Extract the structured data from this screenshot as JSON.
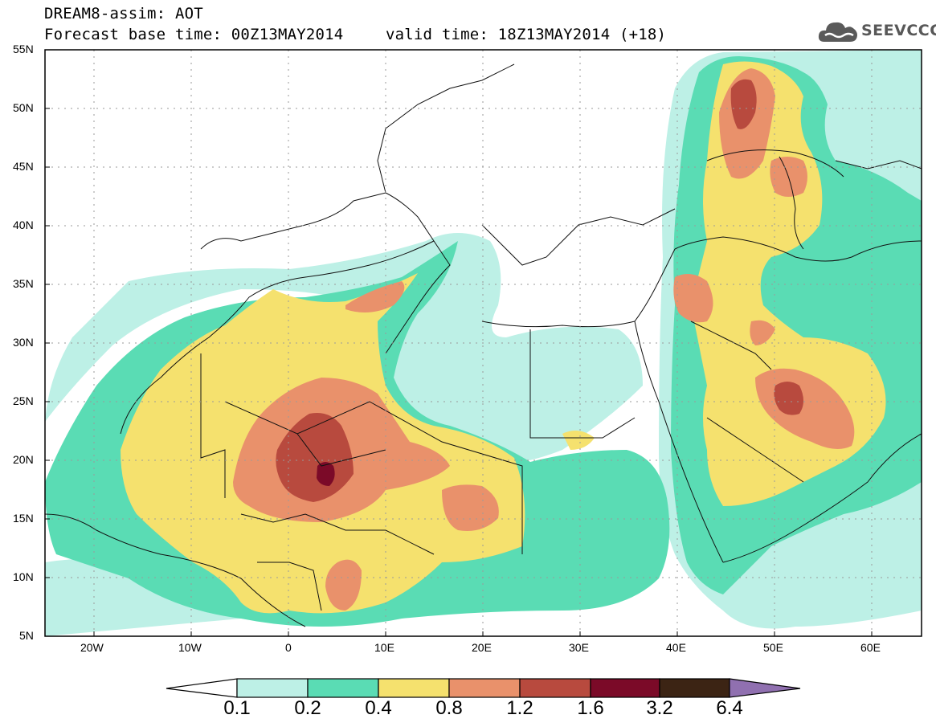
{
  "header": {
    "line1": "DREAM8-assim: AOT",
    "line2": "Forecast base time: 00Z13MAY2014",
    "valid": "valid time: 18Z13MAY2014 (+18)"
  },
  "logo": {
    "text": "SEEVCCC",
    "icon": "cloud-icon"
  },
  "map": {
    "lat_range": [
      5,
      55
    ],
    "lon_range": [
      -25,
      65
    ],
    "lat_ticks": [
      "5N",
      "10N",
      "15N",
      "20N",
      "25N",
      "30N",
      "35N",
      "40N",
      "45N",
      "50N",
      "55N"
    ],
    "lon_ticks": [
      "20W",
      "10W",
      "0",
      "10E",
      "20E",
      "30E",
      "40E",
      "50E",
      "60E"
    ]
  },
  "colorbar": {
    "labels": [
      "0.1",
      "0.2",
      "0.4",
      "0.8",
      "1.2",
      "1.6",
      "3.2",
      "6.4"
    ],
    "colors": [
      "#ffffff",
      "#bdf0e6",
      "#5adcb4",
      "#f5e16e",
      "#e9916b",
      "#b84a3e",
      "#7b0a28",
      "#3c2414",
      "#9070b0"
    ]
  }
}
